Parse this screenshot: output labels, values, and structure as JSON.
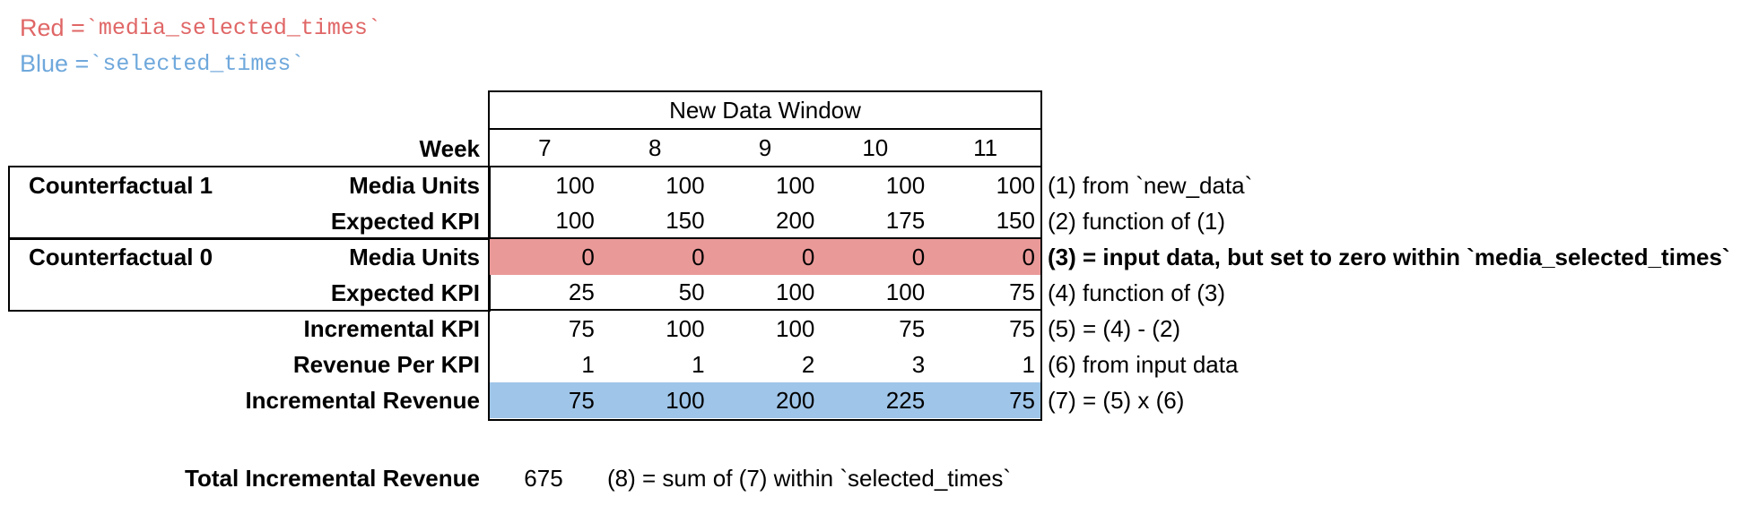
{
  "legend": {
    "red_prefix": "Red = ",
    "red_code": "`media_selected_times`",
    "blue_prefix": "Blue = ",
    "blue_code": "`selected_times`"
  },
  "table": {
    "header": "New Data Window",
    "week_label": "Week",
    "weeks": [
      "7",
      "8",
      "9",
      "10",
      "11"
    ],
    "group_labels": [
      "Counterfactual 1",
      "Counterfactual 0"
    ],
    "rows": [
      {
        "label": "Media Units",
        "values": [
          "100",
          "100",
          "100",
          "100",
          "100"
        ],
        "note": "(1) from `new_data`"
      },
      {
        "label": "Expected KPI",
        "values": [
          "100",
          "150",
          "200",
          "175",
          "150"
        ],
        "note": "(2) function of (1)"
      },
      {
        "label": "Media Units",
        "values": [
          "0",
          "0",
          "0",
          "0",
          "0"
        ],
        "note": "(3) = input data, but set to zero within `media_selected_times`",
        "highlight": "red_fill",
        "note_bold": true
      },
      {
        "label": "Expected KPI",
        "values": [
          "25",
          "50",
          "100",
          "100",
          "75"
        ],
        "note": "(4) function of (3)"
      },
      {
        "label": "Incremental KPI",
        "values": [
          "75",
          "100",
          "100",
          "75",
          "75"
        ],
        "note": "(5) = (4) - (2)"
      },
      {
        "label": "Revenue Per KPI",
        "values": [
          "1",
          "1",
          "2",
          "3",
          "1"
        ],
        "note": "(6) from input data"
      },
      {
        "label": "Incremental Revenue",
        "values": [
          "75",
          "100",
          "200",
          "225",
          "75"
        ],
        "note": "(7) = (5) x (6)",
        "highlight": "blue_fill"
      }
    ]
  },
  "total": {
    "label": "Total Incremental Revenue",
    "value": "675",
    "note": "(8) = sum of (7) within `selected_times`"
  },
  "colors": {
    "red_fill": "#ea9999",
    "blue_fill": "#9fc5e8",
    "red_text": "#e06666",
    "blue_text": "#6fa8dc"
  }
}
